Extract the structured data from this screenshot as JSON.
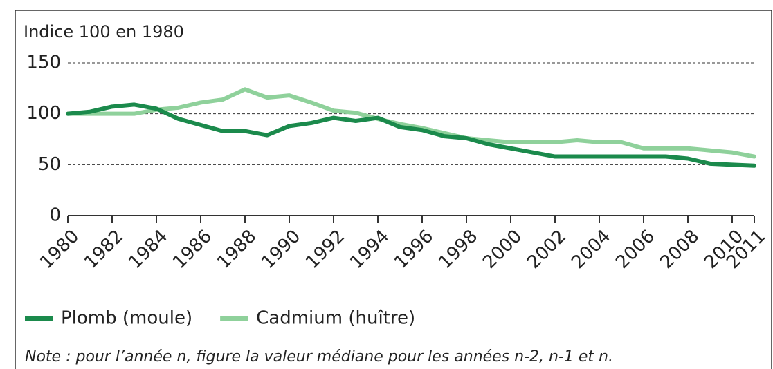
{
  "chart_data": {
    "type": "line",
    "y_label": "Indice 100 en 1980",
    "note": "Note : pour l’année n, figure la valeur médiane pour les années n-2, n-1 et n.",
    "x": [
      1980,
      1981,
      1982,
      1983,
      1984,
      1985,
      1986,
      1987,
      1988,
      1989,
      1990,
      1991,
      1992,
      1993,
      1994,
      1995,
      1996,
      1997,
      1998,
      1999,
      2000,
      2001,
      2002,
      2003,
      2004,
      2005,
      2006,
      2007,
      2008,
      2009,
      2010,
      2011
    ],
    "series": [
      {
        "name": "Plomb (moule)",
        "color": "#1b8a4c",
        "values": [
          100,
          102,
          107,
          109,
          105,
          95,
          89,
          83,
          83,
          79,
          88,
          91,
          96,
          93,
          96,
          87,
          84,
          78,
          76,
          70,
          66,
          62,
          58,
          58,
          58,
          58,
          58,
          58,
          56,
          51,
          50,
          49
        ]
      },
      {
        "name": "Cadmium (huître)",
        "color": "#8fd19b",
        "values": [
          100,
          100,
          100,
          100,
          104,
          106,
          111,
          114,
          124,
          116,
          118,
          111,
          103,
          101,
          95,
          90,
          86,
          81,
          76,
          74,
          72,
          72,
          72,
          74,
          72,
          72,
          66,
          66,
          66,
          64,
          62,
          58
        ]
      }
    ],
    "xlim": [
      1980,
      2011
    ],
    "xticks": [
      1980,
      1982,
      1984,
      1986,
      1988,
      1990,
      1992,
      1994,
      1996,
      1998,
      2000,
      2002,
      2004,
      2006,
      2008,
      2010,
      2011
    ],
    "ylim": [
      0,
      150
    ],
    "yticks": [
      0,
      50,
      100,
      150
    ],
    "grid": true
  }
}
